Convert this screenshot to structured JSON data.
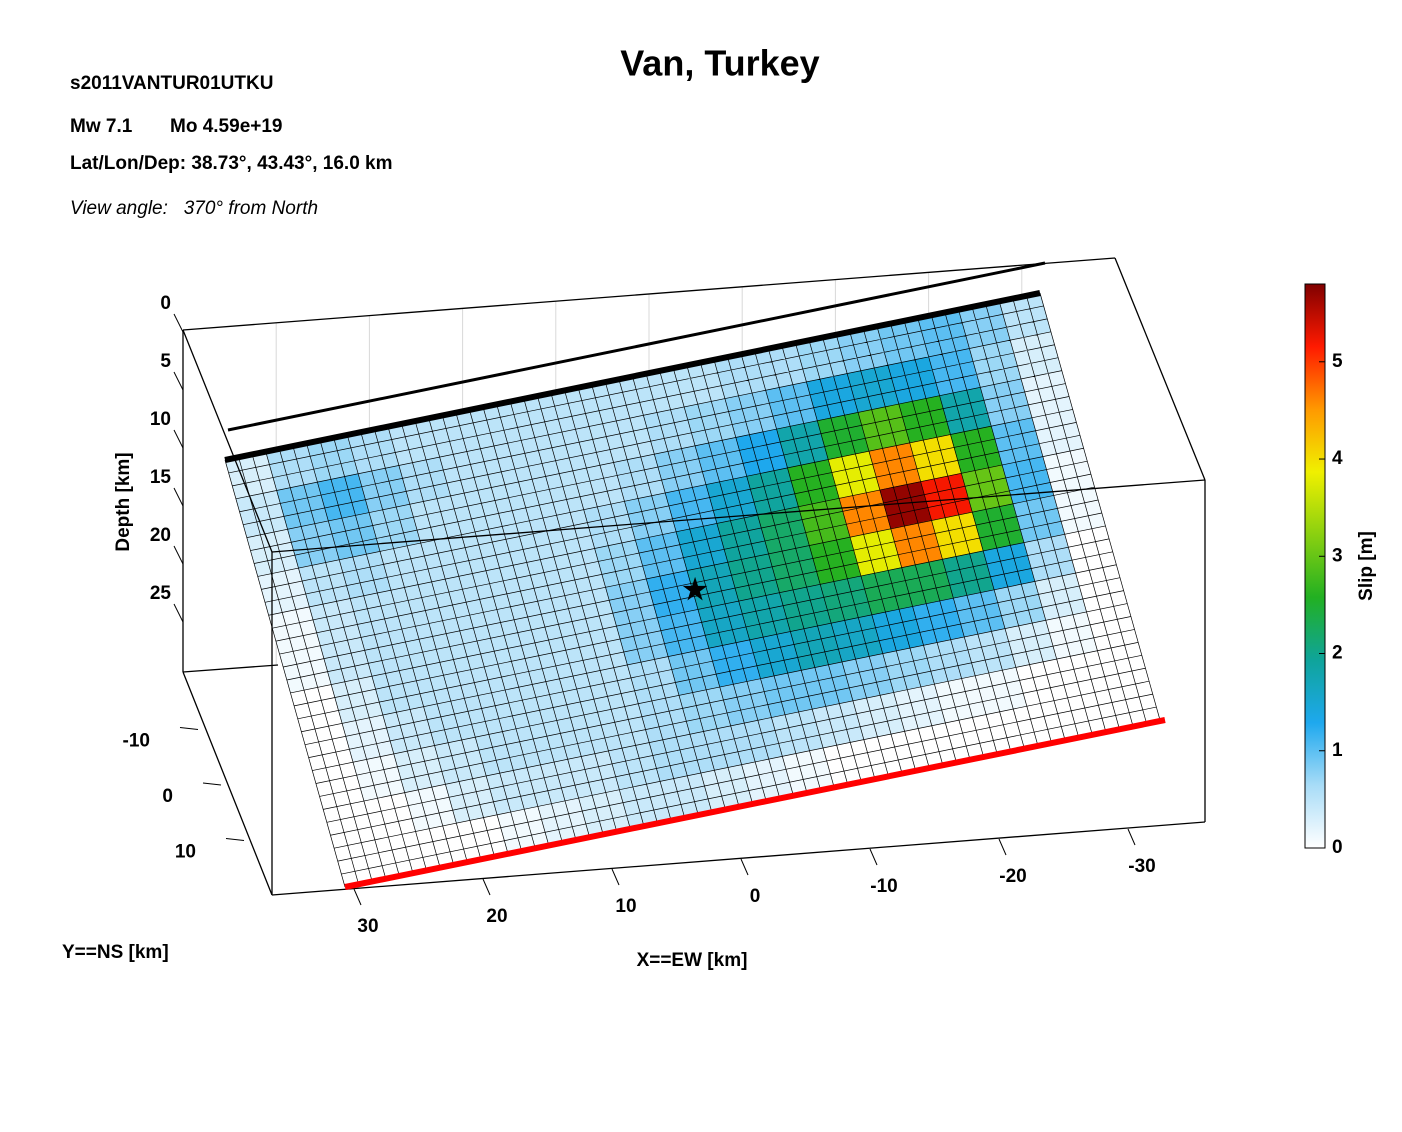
{
  "chart_data": {
    "type": "slip-map",
    "title": "Van, Turkey",
    "event_id": "s2011VANTUR01UTKU",
    "magnitude": "Mw 7.1",
    "moment": "Mo 4.59e+19",
    "location": "Lat/Lon/Dep: 38.73°, 43.43°, 16.0 km",
    "view_angle": "View angle:   370° from North",
    "depth_label": "Depth [km]",
    "y_label": "Y==NS [km]",
    "x_label": "X==EW [km]",
    "colorbar_label": "Slip [m]",
    "depth_ticks": [
      0,
      5,
      10,
      15,
      20,
      25
    ],
    "xticks": [
      30,
      20,
      10,
      0,
      -10,
      -20,
      -30
    ],
    "yticks": [
      -10,
      0,
      10
    ],
    "clim": [
      0,
      5.8
    ],
    "cticks": [
      0,
      1,
      2,
      3,
      4,
      5
    ],
    "colormap": [
      "#ffffff",
      "#a8dcf7",
      "#1ea8ee",
      "#0fa49a",
      "#22b022",
      "#8ad010",
      "#f0f000",
      "#ff9900",
      "#ff1a00",
      "#800000"
    ],
    "slip": [
      [
        0.3,
        0.6,
        0.7,
        0.6,
        0.5,
        0.5,
        0.5,
        0.5,
        0.5,
        0.5,
        0.5,
        0.5,
        0.6,
        0.6,
        0.7,
        0.8,
        0.9,
        1.0,
        0.8,
        0.5
      ],
      [
        0.4,
        0.9,
        1.1,
        0.8,
        0.6,
        0.5,
        0.5,
        0.5,
        0.5,
        0.5,
        0.6,
        0.7,
        0.8,
        1.0,
        1.4,
        1.5,
        1.4,
        1.1,
        0.7,
        0.3
      ],
      [
        0.3,
        0.8,
        0.9,
        0.7,
        0.5,
        0.5,
        0.5,
        0.5,
        0.5,
        0.6,
        0.8,
        1.0,
        1.3,
        1.8,
        2.5,
        2.9,
        2.6,
        1.8,
        0.8,
        0.2
      ],
      [
        0.2,
        0.5,
        0.6,
        0.5,
        0.5,
        0.5,
        0.5,
        0.5,
        0.6,
        0.8,
        1.1,
        1.5,
        1.9,
        2.6,
        3.8,
        4.6,
        4.0,
        2.6,
        1.0,
        0.2
      ],
      [
        0.1,
        0.4,
        0.5,
        0.5,
        0.5,
        0.5,
        0.5,
        0.5,
        0.7,
        1.0,
        1.5,
        1.9,
        2.2,
        2.8,
        4.6,
        5.7,
        5.2,
        3.0,
        1.1,
        0.1
      ],
      [
        0.1,
        0.4,
        0.5,
        0.5,
        0.5,
        0.5,
        0.5,
        0.5,
        0.8,
        1.2,
        1.7,
        2.0,
        2.2,
        2.6,
        3.8,
        4.6,
        4.0,
        2.5,
        0.9,
        0.1
      ],
      [
        0,
        0.3,
        0.5,
        0.5,
        0.5,
        0.5,
        0.5,
        0.5,
        0.8,
        1.1,
        1.6,
        1.8,
        2.0,
        2.1,
        2.3,
        2.3,
        2.0,
        1.4,
        0.6,
        0
      ],
      [
        0,
        0.2,
        0.4,
        0.5,
        0.5,
        0.5,
        0.5,
        0.5,
        0.6,
        0.9,
        1.2,
        1.5,
        1.7,
        1.6,
        1.4,
        1.2,
        1.0,
        0.7,
        0.3,
        0
      ],
      [
        0,
        0.1,
        0.3,
        0.4,
        0.5,
        0.5,
        0.5,
        0.5,
        0.6,
        0.7,
        0.8,
        0.9,
        0.9,
        0.8,
        0.7,
        0.6,
        0.5,
        0.3,
        0.1,
        0
      ],
      [
        0,
        0,
        0.1,
        0.3,
        0.4,
        0.4,
        0.4,
        0.5,
        0.6,
        0.6,
        0.6,
        0.5,
        0.4,
        0.3,
        0.2,
        0.1,
        0.1,
        0,
        0,
        0
      ],
      [
        0,
        0,
        0,
        0,
        0.1,
        0.2,
        0.3,
        0.4,
        0.4,
        0.3,
        0.2,
        0.1,
        0,
        0,
        0,
        0,
        0,
        0,
        0,
        0
      ]
    ]
  }
}
